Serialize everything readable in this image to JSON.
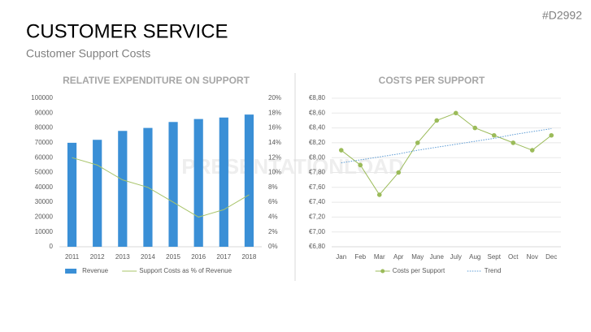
{
  "header": {
    "title": "CUSTOMER SERVICE",
    "subtitle": "Customer Support Costs",
    "code": "#D2992",
    "watermark": "PRESENTATIONLOAD"
  },
  "chart_data": [
    {
      "type": "bar",
      "title": "RELATIVE EXPENDITURE ON SUPPORT",
      "categories": [
        "2011",
        "2012",
        "2013",
        "2014",
        "2015",
        "2016",
        "2017",
        "2018"
      ],
      "series": [
        {
          "name": "Revenue",
          "color": "#3a8fd6",
          "values": [
            70000,
            72000,
            78000,
            80000,
            84000,
            86000,
            87000,
            89000
          ]
        },
        {
          "name": "Support Costs as % of Revenue",
          "color": "#a8c46a",
          "axis": "y2",
          "values": [
            12,
            11,
            9,
            8,
            6,
            4,
            5,
            7
          ]
        }
      ],
      "ylim": [
        0,
        100000
      ],
      "yticks": [
        0,
        10000,
        20000,
        30000,
        40000,
        50000,
        60000,
        70000,
        80000,
        90000,
        100000
      ],
      "y2lim": [
        0,
        20
      ],
      "y2ticks": [
        {
          "value": 0,
          "label": "0%"
        },
        {
          "value": 2,
          "label": "2%"
        },
        {
          "value": 4,
          "label": "4%"
        },
        {
          "value": 6,
          "label": "6%"
        },
        {
          "value": 8,
          "label": "8%"
        },
        {
          "value": 10,
          "label": "10%"
        },
        {
          "value": 12,
          "label": "12%"
        },
        {
          "value": 14,
          "label": "14%"
        },
        {
          "value": 16,
          "label": "16%"
        },
        {
          "value": 18,
          "label": "18%"
        },
        {
          "value": 20,
          "label": "20%"
        }
      ],
      "grid": false,
      "legend": "bottom"
    },
    {
      "type": "line",
      "title": "COSTS PER SUPPORT",
      "categories": [
        "Jan",
        "Feb",
        "Mar",
        "Apr",
        "May",
        "June",
        "July",
        "Aug",
        "Sept",
        "Oct",
        "Nov",
        "Dec"
      ],
      "series": [
        {
          "name": "Costs per Support",
          "color": "#9bbb59",
          "values": [
            8.1,
            7.9,
            7.5,
            7.8,
            8.2,
            8.5,
            8.6,
            8.4,
            8.3,
            8.2,
            8.1,
            8.3
          ]
        },
        {
          "name": "Trend",
          "color": "#5b9bd5",
          "dashed": true,
          "values": [
            7.93,
            7.97,
            8.01,
            8.05,
            8.1,
            8.14,
            8.18,
            8.22,
            8.26,
            8.31,
            8.35,
            8.39
          ]
        }
      ],
      "ylim": [
        6.8,
        8.8
      ],
      "yticks": [
        {
          "value": 6.8,
          "label": "€6,80"
        },
        {
          "value": 7.0,
          "label": "€7,00"
        },
        {
          "value": 7.2,
          "label": "€7,20"
        },
        {
          "value": 7.4,
          "label": "€7,40"
        },
        {
          "value": 7.6,
          "label": "€7,60"
        },
        {
          "value": 7.8,
          "label": "€7,80"
        },
        {
          "value": 8.0,
          "label": "€8,00"
        },
        {
          "value": 8.2,
          "label": "€8,20"
        },
        {
          "value": 8.4,
          "label": "€8,40"
        },
        {
          "value": 8.6,
          "label": "€8,60"
        },
        {
          "value": 8.8,
          "label": "€8,80"
        }
      ],
      "grid": true,
      "legend": "bottom"
    }
  ]
}
